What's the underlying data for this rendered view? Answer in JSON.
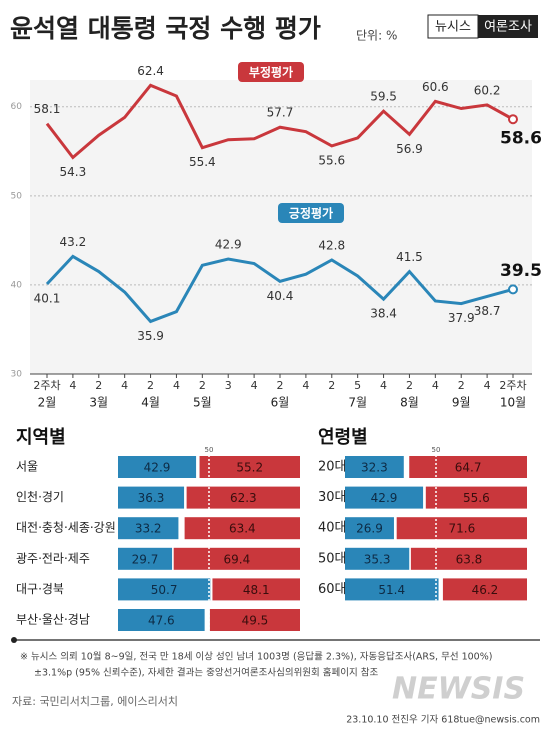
{
  "header": {
    "title": "윤석열 대통령 국정 수행 평가",
    "unit": "단위: %",
    "brand": "뉴시스",
    "brand_tag": "여론조사"
  },
  "chart_data": [
    {
      "type": "line",
      "categories": [
        "2주차",
        "4",
        "2",
        "4",
        "2",
        "4",
        "2",
        "3",
        "4",
        "2",
        "4",
        "2",
        "5",
        "4",
        "2",
        "4",
        "2",
        "4",
        "2주차"
      ],
      "months": [
        "2월",
        null,
        "3월",
        null,
        "4월",
        null,
        "5월",
        null,
        null,
        "6월",
        null,
        null,
        "7월",
        null,
        "8월",
        null,
        "9월",
        null,
        "10월"
      ],
      "ylim": [
        30,
        63
      ],
      "yticks": [
        30,
        40,
        50,
        60
      ],
      "grid": true,
      "series": [
        {
          "name": "부정평가",
          "color": "#c9373c",
          "values": [
            58.1,
            54.3,
            56.8,
            58.8,
            62.4,
            61.2,
            55.4,
            56.3,
            56.4,
            57.7,
            57.2,
            55.6,
            56.5,
            59.5,
            56.9,
            60.6,
            59.8,
            60.2,
            58.6
          ],
          "value_labels": [
            "58.1",
            "54.3",
            null,
            null,
            "62.4",
            null,
            "55.4",
            null,
            null,
            "57.7",
            null,
            "55.6",
            null,
            "59.5",
            "56.9",
            "60.6",
            null,
            "60.2",
            "58.6"
          ]
        },
        {
          "name": "긍정평가",
          "color": "#2a86b8",
          "values": [
            40.1,
            43.2,
            41.5,
            39.2,
            35.9,
            37.0,
            42.2,
            42.9,
            42.4,
            40.4,
            41.2,
            42.8,
            41.0,
            38.4,
            41.5,
            38.2,
            37.9,
            38.7,
            39.5
          ],
          "value_labels": [
            "40.1",
            "43.2",
            null,
            null,
            "35.9",
            null,
            null,
            "42.9",
            null,
            "40.4",
            null,
            "42.8",
            null,
            "38.4",
            "41.5",
            null,
            "37.9",
            "38.7",
            "39.5"
          ]
        }
      ]
    },
    {
      "type": "hbar-split",
      "title": "지역별",
      "categories": [
        "서울",
        "인천·경기",
        "대전·충청·세종·강원",
        "광주·전라·제주",
        "대구·경북",
        "부산·울산·경남"
      ],
      "xlim": [
        0,
        100
      ],
      "xticks": [
        50
      ],
      "series": [
        {
          "color": "#2a86b8",
          "values": [
            42.9,
            36.3,
            33.2,
            29.7,
            50.7,
            47.6
          ]
        },
        {
          "color": "#c9373c",
          "values": [
            55.2,
            62.3,
            63.4,
            69.4,
            48.1,
            49.5
          ]
        }
      ]
    },
    {
      "type": "hbar-split",
      "title": "연령별",
      "categories": [
        "20대",
        "30대",
        "40대",
        "50대",
        "60대↑"
      ],
      "xlim": [
        0,
        100
      ],
      "xticks": [
        50
      ],
      "series": [
        {
          "color": "#2a86b8",
          "values": [
            32.3,
            42.9,
            26.9,
            35.3,
            51.4
          ]
        },
        {
          "color": "#c9373c",
          "values": [
            64.7,
            55.6,
            71.6,
            63.8,
            46.2
          ]
        }
      ]
    }
  ],
  "footer": {
    "note1": "※  뉴시스 의뢰 10월 8~9일, 전국 만 18세 이상 성인 남녀 1003명 (응답률 2.3%), 자동응답조사(ARS, 무선 100%)",
    "note2": "±3.1%p (95% 신뢰수준), 자세한 결과는 중앙선거여론조사심의위원회 홈페이지 참조",
    "source": "자료: 국민리서치그룹, 에이스리서치",
    "credit": "23.10.10 전진우 기자 618tue@newsis.com",
    "watermark": "NEWSIS"
  }
}
